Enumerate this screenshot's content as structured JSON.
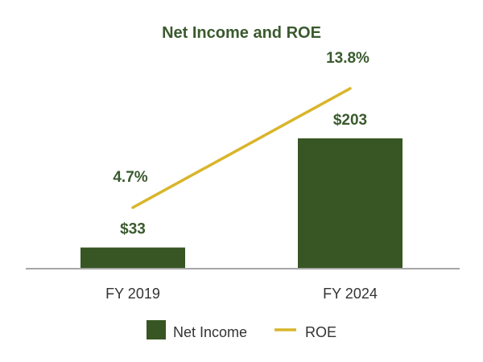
{
  "chart_data": {
    "type": "bar",
    "title": "Net Income and ROE",
    "categories": [
      "FY 2019",
      "FY 2024"
    ],
    "series": [
      {
        "name": "Net Income",
        "kind": "bar",
        "values": [
          33,
          203
        ],
        "labels": [
          "$33",
          "$203"
        ],
        "color": "#375623"
      },
      {
        "name": "ROE",
        "kind": "line",
        "values": [
          4.7,
          13.8
        ],
        "labels": [
          "4.7%",
          "13.8%"
        ],
        "color": "#D9B52A"
      }
    ],
    "legend": "bottom",
    "grid": false
  },
  "colors": {
    "title": "#3A5A2E",
    "label": "#3A5A2E",
    "tick": "#333333",
    "axis": "#A6A6A6"
  }
}
